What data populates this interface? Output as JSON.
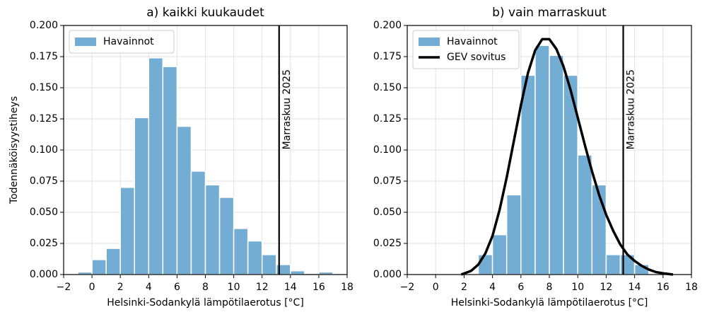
{
  "chart_data": [
    {
      "type": "histogram",
      "title": "a) kaikki kuukaudet",
      "xlabel": "Helsinki-Sodankylä lämpötilaerotus [°C]",
      "ylabel": "Todennäköisyystiheys",
      "legend": "upper left",
      "grid": true,
      "xlim": [
        -2,
        18
      ],
      "ylim": [
        0,
        0.2
      ],
      "xticks": [
        {
          "value": -2,
          "label": "−2"
        },
        0,
        2,
        4,
        6,
        8,
        10,
        12,
        14,
        16,
        18
      ],
      "yticks": [
        {
          "value": 0,
          "label": "0.000"
        },
        {
          "value": 0.025,
          "label": "0.025"
        },
        {
          "value": 0.05,
          "label": "0.050"
        },
        {
          "value": 0.075,
          "label": "0.075"
        },
        {
          "value": 0.1,
          "label": "0.100"
        },
        {
          "value": 0.125,
          "label": "0.125"
        },
        {
          "value": 0.15,
          "label": "0.150"
        },
        {
          "value": 0.175,
          "label": "0.175"
        },
        {
          "value": 0.2,
          "label": "0.200"
        }
      ],
      "series": [
        {
          "name": "Havainnot",
          "color": "#74add3",
          "type": "histogram",
          "bins": [
            -1,
            0,
            1,
            2,
            3,
            4,
            5,
            6,
            7,
            8,
            9,
            10,
            11,
            12,
            13,
            14,
            15,
            16,
            17
          ],
          "values": [
            0.002,
            0.012,
            0.021,
            0.07,
            0.126,
            0.174,
            0.167,
            0.119,
            0.083,
            0.072,
            0.062,
            0.037,
            0.027,
            0.016,
            0.008,
            0.003,
            0.001,
            0.002
          ]
        }
      ],
      "vline": {
        "label": "Marraskuu 2025",
        "x": 13.2,
        "color": "#000000"
      }
    },
    {
      "type": "histogram",
      "title": "b) vain marraskuut",
      "xlabel": "Helsinki-Sodankylä lämpötilaerotus [°C]",
      "legend": "upper left",
      "grid": true,
      "xlim": [
        -2,
        18
      ],
      "ylim": [
        0,
        0.2
      ],
      "xticks": [
        {
          "value": -2,
          "label": "−2"
        },
        0,
        2,
        4,
        6,
        8,
        10,
        12,
        14,
        16,
        18
      ],
      "yticks": [
        {
          "value": 0,
          "label": "0.000"
        },
        {
          "value": 0.025,
          "label": "0.025"
        },
        {
          "value": 0.05,
          "label": "0.050"
        },
        {
          "value": 0.075,
          "label": "0.075"
        },
        {
          "value": 0.1,
          "label": "0.100"
        },
        {
          "value": 0.125,
          "label": "0.125"
        },
        {
          "value": 0.15,
          "label": "0.150"
        },
        {
          "value": 0.175,
          "label": "0.175"
        },
        {
          "value": 0.2,
          "label": "0.200"
        }
      ],
      "series": [
        {
          "name": "Havainnot",
          "color": "#74add3",
          "type": "histogram",
          "bins": [
            3,
            4,
            5,
            6,
            7,
            8,
            9,
            10,
            11,
            12,
            13,
            14,
            15
          ],
          "values": [
            0.016,
            0.032,
            0.064,
            0.16,
            0.184,
            0.176,
            0.16,
            0.096,
            0.072,
            0.016,
            0.016,
            0.008
          ]
        },
        {
          "name": "GEV sovitus",
          "color": "#000000",
          "type": "line",
          "x": [
            1.8,
            2.5,
            3,
            3.5,
            4,
            4.5,
            5,
            5.5,
            6,
            6.5,
            7,
            7.5,
            8,
            8.5,
            9,
            9.5,
            10,
            10.5,
            11,
            11.5,
            12,
            12.5,
            13,
            13.5,
            14,
            14.5,
            15,
            15.5,
            16,
            16.7
          ],
          "values": [
            0,
            0.003,
            0.008,
            0.017,
            0.031,
            0.052,
            0.078,
            0.107,
            0.136,
            0.162,
            0.18,
            0.189,
            0.189,
            0.181,
            0.167,
            0.148,
            0.126,
            0.104,
            0.083,
            0.064,
            0.048,
            0.035,
            0.024,
            0.016,
            0.011,
            0.007,
            0.004,
            0.002,
            0.001,
            0
          ]
        }
      ],
      "vline": {
        "label": "Marraskuu 2025",
        "x": 13.2,
        "color": "#000000"
      }
    }
  ]
}
